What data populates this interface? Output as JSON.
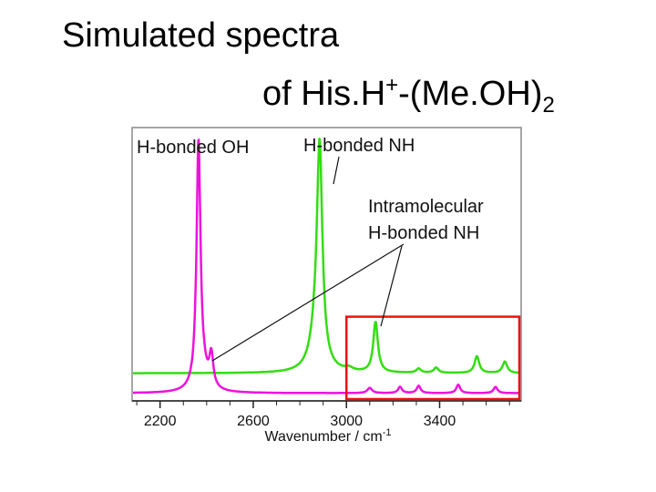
{
  "title": {
    "line1": "Simulated spectra",
    "line2_prefix": "of His.H",
    "line2_sup": "+",
    "line2_mid": "-(Me.OH)",
    "line2_sub": "2"
  },
  "chart_data": {
    "type": "line",
    "xlabel": "Wavenumber / cm",
    "xlabel_sup": "-1",
    "xlim": [
      2080,
      3750
    ],
    "xticks": [
      2200,
      2600,
      3000,
      3400
    ],
    "ylabel": "",
    "yticks": false,
    "grid": false,
    "legend": "none",
    "series": [
      {
        "color": "#33dd11",
        "baseline": 0.11,
        "peaks": [
          {
            "x": 2885,
            "y": 1.0,
            "w": 14
          },
          {
            "x": 2870,
            "y": 0.15,
            "w": 30
          },
          {
            "x": 3010,
            "y": 0.015,
            "w": 20
          },
          {
            "x": 3125,
            "y": 0.24,
            "w": 12
          },
          {
            "x": 3310,
            "y": 0.02,
            "w": 12
          },
          {
            "x": 3385,
            "y": 0.025,
            "w": 12
          },
          {
            "x": 3560,
            "y": 0.08,
            "w": 12
          },
          {
            "x": 3680,
            "y": 0.055,
            "w": 12
          }
        ]
      },
      {
        "color": "#ee11dd",
        "baseline": 0.015,
        "peaks": [
          {
            "x": 2365,
            "y": 1.15,
            "w": 10
          },
          {
            "x": 2420,
            "y": 0.15,
            "w": 10
          },
          {
            "x": 2380,
            "y": 0.08,
            "w": 30
          },
          {
            "x": 3100,
            "y": 0.025,
            "w": 12
          },
          {
            "x": 3230,
            "y": 0.03,
            "w": 10
          },
          {
            "x": 3310,
            "y": 0.035,
            "w": 10
          },
          {
            "x": 3480,
            "y": 0.04,
            "w": 10
          },
          {
            "x": 3640,
            "y": 0.03,
            "w": 10
          }
        ]
      }
    ],
    "annotations": [
      {
        "text": "H-bonded OH",
        "lines": []
      },
      {
        "text": "H-bonded NH",
        "lines": []
      },
      {
        "text": "Intramolecular",
        "lines": []
      },
      {
        "text": "H-bonded NH",
        "lines": []
      }
    ],
    "highlight_box": {
      "x0": 3000,
      "x1": 3750,
      "y0": 0.0,
      "y1": 0.38,
      "color": "#ee1111"
    }
  }
}
